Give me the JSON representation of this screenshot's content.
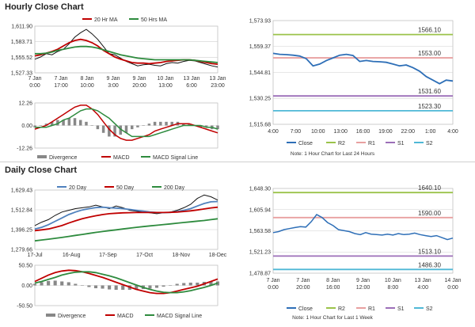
{
  "sections": {
    "hourly_title": "Hourly Close Chart",
    "daily_title": "Daily Close Chart"
  },
  "colors": {
    "price": "#111111",
    "ma_short": "#c00000",
    "ma_mid": "#2e8b3e",
    "ma_long": "#2e8b3e",
    "ma20_daily": "#4f81bd",
    "close_line": "#2e6fb7",
    "r2": "#9bc34a",
    "r1": "#e8a0a0",
    "s1": "#9c6fb8",
    "s2": "#4fb8d6",
    "divergence": "#888888",
    "macd": "#c00000",
    "macd_signal": "#2e8b3e",
    "grid": "#d0d0d0",
    "axis_text": "#333333"
  },
  "chart_data": [
    {
      "id": "hourly_price_ma",
      "type": "line",
      "legend": [
        "20 Hr MA",
        "50 Hrs MA"
      ],
      "y_ticks": [
        "1,611.90",
        "1,583.71",
        "1,555.52",
        "1,527.33"
      ],
      "ylim": [
        1527.33,
        1611.9
      ],
      "x_ticks": [
        [
          "7 Jan",
          "0:00"
        ],
        [
          "7 Jan",
          "17:00"
        ],
        [
          "8 Jan",
          "10:00"
        ],
        [
          "9 Jan",
          "3:00"
        ],
        [
          "9 Jan",
          "20:00"
        ],
        [
          "10 Jan",
          "13:00"
        ],
        [
          "13 Jan",
          "6:00"
        ],
        [
          "13 Jan",
          "23:00"
        ]
      ],
      "series": [
        {
          "name": "Close",
          "color_key": "price",
          "values": [
            1552,
            1556,
            1562,
            1560,
            1566,
            1570,
            1580,
            1592,
            1600,
            1606,
            1598,
            1588,
            1575,
            1562,
            1560,
            1554,
            1548,
            1544,
            1540,
            1542,
            1543,
            1541,
            1540,
            1544,
            1546,
            1545,
            1548,
            1550,
            1549,
            1546,
            1543,
            1540,
            1538
          ]
        },
        {
          "name": "20 Hr MA",
          "color_key": "ma_short",
          "values": [
            1558,
            1560,
            1563,
            1566,
            1570,
            1576,
            1582,
            1586,
            1588,
            1586,
            1582,
            1576,
            1568,
            1562,
            1556,
            1552,
            1549,
            1546,
            1545,
            1545,
            1544,
            1545,
            1546,
            1548,
            1549,
            1550,
            1551,
            1551,
            1550,
            1548,
            1546,
            1544,
            1543
          ]
        },
        {
          "name": "50 Hrs MA",
          "color_key": "ma_mid",
          "values": [
            1562,
            1562,
            1563,
            1565,
            1568,
            1570,
            1572,
            1574,
            1575,
            1575,
            1574,
            1572,
            1569,
            1566,
            1563,
            1560,
            1558,
            1556,
            1554,
            1553,
            1552,
            1551,
            1551,
            1551,
            1551,
            1551,
            1551,
            1551,
            1550,
            1549,
            1548,
            1547,
            1546
          ]
        }
      ]
    },
    {
      "id": "hourly_macd",
      "type": "line",
      "legend": [
        "Divergence",
        "MACD",
        "MACD Signal Line"
      ],
      "y_ticks": [
        "12.26",
        "0.00",
        "-12.26"
      ],
      "ylim": [
        -12.26,
        12.26
      ],
      "series": [
        {
          "name": "MACD",
          "color_key": "macd",
          "values": [
            -2,
            -1,
            0,
            2,
            4,
            6,
            8,
            10,
            11,
            11,
            9,
            6,
            2,
            -2,
            -5,
            -7,
            -8,
            -8,
            -7,
            -6,
            -5,
            -3,
            -2,
            -1,
            0,
            1,
            1,
            1,
            0,
            -1,
            -2,
            -3,
            -4
          ]
        },
        {
          "name": "MACD Signal Line",
          "color_key": "macd_signal",
          "values": [
            -1,
            -1,
            -1,
            0,
            1,
            3,
            4,
            6,
            8,
            9,
            9,
            8,
            6,
            4,
            1,
            -2,
            -4,
            -6,
            -6,
            -6,
            -6,
            -5,
            -4,
            -3,
            -2,
            -1,
            0,
            0,
            0,
            0,
            -1,
            -1,
            -2
          ]
        },
        {
          "name": "Divergence",
          "color_key": "divergence",
          "values": [
            -1,
            0,
            1,
            2,
            3,
            3,
            4,
            4,
            3,
            2,
            0,
            -2,
            -4,
            -6,
            -6,
            -5,
            -4,
            -2,
            -1,
            0,
            1,
            2,
            2,
            2,
            2,
            2,
            1,
            1,
            0,
            -1,
            -1,
            -2,
            -2
          ]
        }
      ]
    },
    {
      "id": "hourly_close_levels",
      "type": "line",
      "y_ticks": [
        "1,573.93",
        "1,559.37",
        "1,544.81",
        "1,530.25",
        "1,515.68"
      ],
      "ylim": [
        1515.68,
        1573.93
      ],
      "x_ticks": [
        "4:00",
        "7:00",
        "10:00",
        "13:00",
        "16:00",
        "19:00",
        "22:00",
        "1:00",
        "4:00"
      ],
      "levels": [
        {
          "name": "R2",
          "value": 1566.1,
          "label": "1566.10",
          "color_key": "r2"
        },
        {
          "name": "R1",
          "value": 1553.0,
          "label": "1553.00",
          "color_key": "r1"
        },
        {
          "name": "S1",
          "value": 1531.6,
          "label": "1531.60",
          "color_key": "s1"
        },
        {
          "name": "S2",
          "value": 1523.3,
          "label": "1523.30",
          "color_key": "s2"
        }
      ],
      "series": [
        {
          "name": "Close",
          "color_key": "close_line",
          "values": [
            1555.5,
            1555,
            1554.8,
            1554.5,
            1554,
            1552.5,
            1548.5,
            1549.5,
            1551.5,
            1553,
            1554.5,
            1555,
            1554.3,
            1551,
            1551.5,
            1551,
            1550.8,
            1550.5,
            1549.5,
            1548.5,
            1549,
            1547.5,
            1545.5,
            1542.5,
            1540.5,
            1538.5,
            1540.5,
            1540
          ]
        }
      ],
      "legend": [
        "Close",
        "R2",
        "R1",
        "S1",
        "S2"
      ],
      "note": "Note: 1 Hour Chart for Last 24 Hours"
    },
    {
      "id": "daily_price_ma",
      "type": "line",
      "legend": [
        "20 Day",
        "50 Day",
        "200 Day"
      ],
      "y_ticks": [
        "1,629.43",
        "1,512.84",
        "1,396.25",
        "1,279.66"
      ],
      "ylim": [
        1279.66,
        1629.43
      ],
      "x_ticks": [
        "17-Jul",
        "16-Aug",
        "17-Sep",
        "17-Oct",
        "18-Nov",
        "18-Dec"
      ],
      "series": [
        {
          "name": "Close",
          "color_key": "price",
          "values": [
            1420,
            1440,
            1455,
            1480,
            1500,
            1510,
            1520,
            1525,
            1530,
            1540,
            1530,
            1520,
            1535,
            1525,
            1510,
            1505,
            1500,
            1495,
            1490,
            1495,
            1500,
            1510,
            1525,
            1545,
            1580,
            1600,
            1590,
            1570
          ]
        },
        {
          "name": "20 Day",
          "color_key": "ma20_daily",
          "values": [
            1400,
            1410,
            1425,
            1445,
            1465,
            1485,
            1500,
            1512,
            1520,
            1526,
            1528,
            1525,
            1523,
            1520,
            1515,
            1510,
            1505,
            1500,
            1497,
            1496,
            1498,
            1502,
            1510,
            1520,
            1535,
            1550,
            1560,
            1562
          ]
        },
        {
          "name": "50 Day",
          "color_key": "ma_short",
          "values": [
            1390,
            1395,
            1400,
            1410,
            1420,
            1435,
            1448,
            1460,
            1470,
            1478,
            1485,
            1490,
            1493,
            1495,
            1496,
            1497,
            1497,
            1497,
            1497,
            1497,
            1498,
            1500,
            1503,
            1507,
            1512,
            1518,
            1524,
            1528
          ]
        },
        {
          "name": "200 Day",
          "color_key": "ma_long",
          "values": [
            1330,
            1335,
            1340,
            1345,
            1350,
            1356,
            1362,
            1368,
            1374,
            1380,
            1385,
            1390,
            1395,
            1400,
            1405,
            1410,
            1414,
            1418,
            1422,
            1426,
            1430,
            1434,
            1438,
            1442,
            1446,
            1450,
            1455,
            1460
          ]
        }
      ]
    },
    {
      "id": "daily_macd",
      "type": "line",
      "legend": [
        "Divergence",
        "MACD",
        "MACD Signal Line"
      ],
      "y_ticks": [
        "50.50",
        "0.00",
        "-50.50"
      ],
      "ylim": [
        -50.5,
        50.5
      ],
      "series": [
        {
          "name": "MACD",
          "color_key": "macd",
          "values": [
            10,
            18,
            26,
            32,
            36,
            38,
            37,
            34,
            30,
            25,
            20,
            14,
            8,
            2,
            -4,
            -10,
            -14,
            -18,
            -20,
            -20,
            -18,
            -14,
            -10,
            -6,
            -2,
            4,
            10,
            16
          ]
        },
        {
          "name": "MACD Signal Line",
          "color_key": "macd_signal",
          "values": [
            6,
            10,
            15,
            20,
            26,
            30,
            33,
            34,
            34,
            32,
            28,
            24,
            19,
            13,
            7,
            1,
            -5,
            -10,
            -14,
            -17,
            -18,
            -18,
            -16,
            -13,
            -9,
            -5,
            0,
            6
          ]
        },
        {
          "name": "Divergence",
          "color_key": "divergence",
          "values": [
            4,
            8,
            11,
            12,
            10,
            8,
            4,
            0,
            -4,
            -7,
            -8,
            -10,
            -11,
            -11,
            -11,
            -11,
            -9,
            -8,
            -6,
            -3,
            0,
            4,
            6,
            7,
            7,
            9,
            10,
            10
          ]
        }
      ]
    },
    {
      "id": "daily_close_levels",
      "type": "line",
      "y_ticks": [
        "1,648.30",
        "1,605.94",
        "1,563.58",
        "1,521.23",
        "1,478.87"
      ],
      "ylim": [
        1478.87,
        1648.3
      ],
      "x_ticks": [
        [
          "7 Jan",
          "0:00"
        ],
        [
          "7 Jan",
          "20:00"
        ],
        [
          "8 Jan",
          "16:00"
        ],
        [
          "9 Jan",
          "12:00"
        ],
        [
          "10 Jan",
          "8:00"
        ],
        [
          "13 Jan",
          "4:00"
        ],
        [
          "14 Jan",
          "0:00"
        ]
      ],
      "levels": [
        {
          "name": "R2",
          "value": 1640.1,
          "label": "1640.10",
          "color_key": "r2"
        },
        {
          "name": "R1",
          "value": 1590.0,
          "label": "1590.00",
          "color_key": "r1"
        },
        {
          "name": "S1",
          "value": 1513.1,
          "label": "1513.10",
          "color_key": "s1"
        },
        {
          "name": "S2",
          "value": 1486.3,
          "label": "1486.30",
          "color_key": "s2"
        }
      ],
      "series": [
        {
          "name": "Close",
          "color_key": "close_line",
          "values": [
            1560,
            1562,
            1566,
            1568,
            1570,
            1572,
            1571,
            1582,
            1596,
            1590,
            1580,
            1574,
            1566,
            1564,
            1562,
            1558,
            1556,
            1560,
            1557,
            1556,
            1555,
            1557,
            1555,
            1558,
            1556,
            1557,
            1559,
            1556,
            1554,
            1552,
            1554,
            1550,
            1546,
            1549
          ]
        }
      ],
      "legend": [
        "Close",
        "R2",
        "R1",
        "S1",
        "S2"
      ],
      "note": "Note: 1 Hour Chart for Last 1 Week"
    }
  ]
}
